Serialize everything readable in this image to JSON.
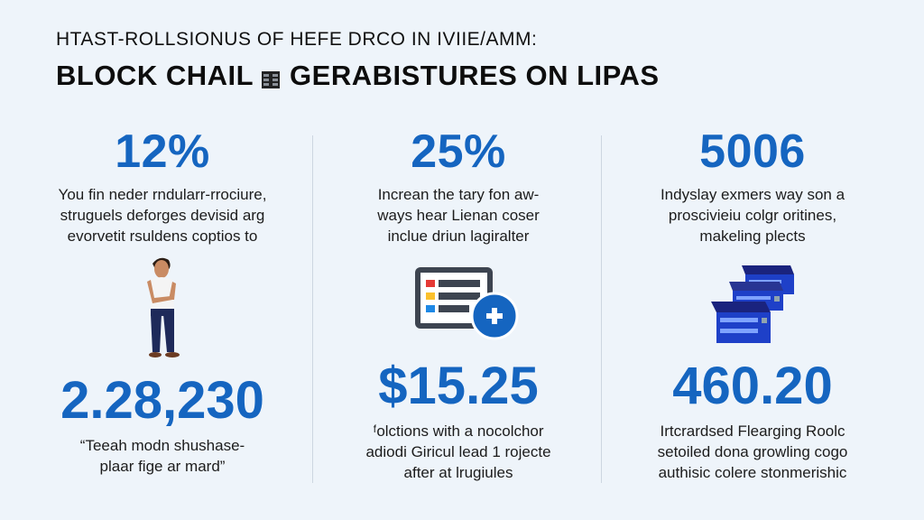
{
  "header": {
    "subtitle": "HTAST-ROLLSIONUS OF HEFE DRCO IN IVIIE/AMM:",
    "title_left": "BLOCK CHAIL",
    "title_right": "GERABISTURES ON LIPAS"
  },
  "colors": {
    "accent": "#1565c0",
    "background": "#eef4fa",
    "heading": "#0d0d0d"
  },
  "columns": [
    {
      "stat": "12%",
      "desc": [
        "You fin neder rndularr-rrociure,",
        "struguels deforges devisid arg",
        "evorvetit rsuldens coptios to"
      ],
      "icon": "person-icon",
      "stat2": "2.28,230",
      "desc2": [
        "“Teeah modn shushase-",
        "plaar fige ar mard”"
      ]
    },
    {
      "stat": "25%",
      "desc": [
        "Increan the tary fon aw-",
        "ways hear Lienan coser",
        "inclue driun lagiralter"
      ],
      "icon": "document-add-icon",
      "stat2": "$15.25",
      "desc2": [
        "ᶠolctions with a nocolchor",
        "adiodi Giricul lead 1 rojecte",
        "after at lrugiules"
      ]
    },
    {
      "stat": "5006",
      "desc": [
        "Indyslay exmers way son a",
        "proscivieiu colgr oritines,",
        "makeling plects"
      ],
      "icon": "servers-icon",
      "stat2": "460.20",
      "desc2": [
        "Irtcrardsed Flearging Roolc",
        "setoiled dona growling cogo",
        "authisic colere stonmerishic"
      ]
    }
  ]
}
